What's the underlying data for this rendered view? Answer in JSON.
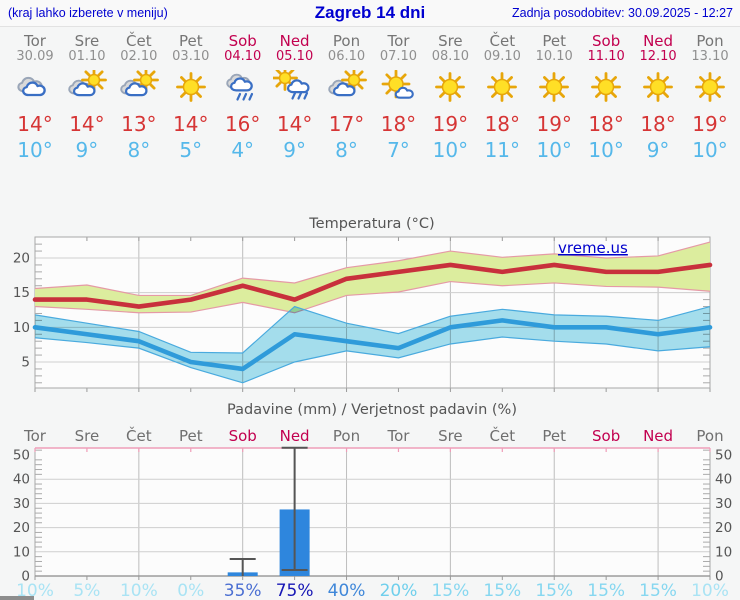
{
  "header": {
    "left_note": "(kraj lahko izberete v meniju)",
    "title": "Zagreb 14 dni",
    "updated": "Zadnja posodobitev: 30.09.2025 - 12:27"
  },
  "colors": {
    "link_blue": "#0000d0",
    "weekday": "#757575",
    "weekend": "#c2004f",
    "high_temp": "#d63535",
    "low_temp": "#55b8ea",
    "grid": "#cfcfcf",
    "grid_vertical": "#bdbdbd",
    "axis_label": "#555555",
    "bar_blue": "#2e86dd",
    "whisker": "#555555",
    "precip_top_border": "#ef9db8"
  },
  "days": [
    {
      "name": "Tor",
      "date": "30.09",
      "weekend": false,
      "icon": "cloudy",
      "high": "14°",
      "low": "10°"
    },
    {
      "name": "Sre",
      "date": "01.10",
      "weekend": false,
      "icon": "partly-cloudy",
      "high": "14°",
      "low": "9°"
    },
    {
      "name": "Čet",
      "date": "02.10",
      "weekend": false,
      "icon": "partly-cloudy",
      "high": "13°",
      "low": "8°"
    },
    {
      "name": "Pet",
      "date": "03.10",
      "weekend": false,
      "icon": "sunny",
      "high": "14°",
      "low": "5°"
    },
    {
      "name": "Sob",
      "date": "04.10",
      "weekend": true,
      "icon": "rain",
      "high": "16°",
      "low": "4°"
    },
    {
      "name": "Ned",
      "date": "05.10",
      "weekend": true,
      "icon": "sun-rain",
      "high": "14°",
      "low": "9°"
    },
    {
      "name": "Pon",
      "date": "06.10",
      "weekend": false,
      "icon": "partly-cloudy",
      "high": "17°",
      "low": "8°"
    },
    {
      "name": "Tor",
      "date": "07.10",
      "weekend": false,
      "icon": "mostly-sunny",
      "high": "18°",
      "low": "7°"
    },
    {
      "name": "Sre",
      "date": "08.10",
      "weekend": false,
      "icon": "sunny",
      "high": "19°",
      "low": "10°"
    },
    {
      "name": "Čet",
      "date": "09.10",
      "weekend": false,
      "icon": "sunny",
      "high": "18°",
      "low": "11°"
    },
    {
      "name": "Pet",
      "date": "10.10",
      "weekend": false,
      "icon": "sunny",
      "high": "19°",
      "low": "10°"
    },
    {
      "name": "Sob",
      "date": "11.10",
      "weekend": true,
      "icon": "sunny",
      "high": "18°",
      "low": "10°"
    },
    {
      "name": "Ned",
      "date": "12.10",
      "weekend": true,
      "icon": "sunny",
      "high": "18°",
      "low": "9°"
    },
    {
      "name": "Pon",
      "date": "13.10",
      "weekend": false,
      "icon": "sunny",
      "high": "19°",
      "low": "10°"
    }
  ],
  "chart_data": [
    {
      "type": "line",
      "title": "Temperatura (°C)",
      "watermark": "vreme.us",
      "categories": [
        "Tor 30.09",
        "Sre 01.10",
        "Čet 02.10",
        "Pet 03.10",
        "Sob 04.10",
        "Ned 05.10",
        "Pon 06.10",
        "Tor 07.10",
        "Sre 08.10",
        "Čet 09.10",
        "Pet 10.10",
        "Sob 11.10",
        "Ned 12.10",
        "Pon 13.10"
      ],
      "ylim": [
        1,
        23
      ],
      "yticks": [
        5,
        10,
        15,
        20
      ],
      "grid": true,
      "series": [
        {
          "name": "max_temp",
          "color": "#c8303c",
          "values": [
            14,
            14,
            13,
            14,
            16,
            14,
            17,
            18,
            19,
            18,
            19,
            18,
            18,
            19
          ]
        },
        {
          "name": "min_temp",
          "color": "#2f9bda",
          "values": [
            10,
            9,
            8,
            5,
            4,
            9,
            8,
            7,
            10,
            11,
            10,
            10,
            9,
            10
          ]
        }
      ],
      "bands": [
        {
          "name": "max_range",
          "fill": "#dced9e",
          "edge": "#e59aa6",
          "upper": [
            15.6,
            16.1,
            14.6,
            14.6,
            17.1,
            16.4,
            18.6,
            19.6,
            21.0,
            20.1,
            20.6,
            20.0,
            20.3,
            22.3
          ],
          "lower": [
            13.0,
            12.6,
            12.1,
            12.2,
            13.6,
            12.1,
            14.6,
            15.1,
            16.6,
            16.0,
            16.4,
            15.9,
            15.8,
            15.2
          ]
        },
        {
          "name": "min_range",
          "fill": "#a6e0ef",
          "edge": "#49aade",
          "upper": [
            11.8,
            10.6,
            9.4,
            6.4,
            6.3,
            13.0,
            10.6,
            9.1,
            11.6,
            12.6,
            11.8,
            11.6,
            11.0,
            13.0
          ],
          "lower": [
            8.5,
            7.8,
            7.0,
            4.2,
            2.0,
            5.0,
            6.6,
            5.6,
            7.6,
            8.6,
            8.0,
            7.6,
            6.6,
            7.2
          ]
        }
      ]
    },
    {
      "type": "bar",
      "title": "Padavine (mm) / Verjetnost padavin (%)",
      "categories": [
        "Tor",
        "Sre",
        "Čet",
        "Pet",
        "Sob",
        "Ned",
        "Pon",
        "Tor",
        "Sre",
        "Čet",
        "Pet",
        "Sob",
        "Ned",
        "Pon"
      ],
      "ylim": [
        0,
        53
      ],
      "yticks": [
        0,
        10,
        20,
        30,
        40,
        50
      ],
      "grid": true,
      "bar_color": "#2e86dd",
      "bars_mm": [
        0,
        0,
        0,
        0,
        1.5,
        27.5,
        0,
        0,
        0,
        0,
        0,
        0,
        0,
        0
      ],
      "whisker_low": [
        null,
        null,
        null,
        null,
        0,
        2.5,
        null,
        null,
        null,
        null,
        null,
        null,
        null,
        null
      ],
      "whisker_high": [
        null,
        null,
        null,
        null,
        7,
        53,
        null,
        null,
        null,
        null,
        null,
        null,
        null,
        null
      ],
      "probability_percent": [
        10,
        5,
        10,
        0,
        35,
        75,
        40,
        20,
        15,
        15,
        15,
        15,
        15,
        10
      ],
      "prob_colors": [
        "#a9e3f4",
        "#a9e3f4",
        "#a9e3f4",
        "#a9e3f4",
        "#4b6fd2",
        "#1717b5",
        "#3f87d9",
        "#6fcfec",
        "#86d7f0",
        "#86d7f0",
        "#86d7f0",
        "#86d7f0",
        "#86d7f0",
        "#a9e3f4"
      ]
    }
  ]
}
